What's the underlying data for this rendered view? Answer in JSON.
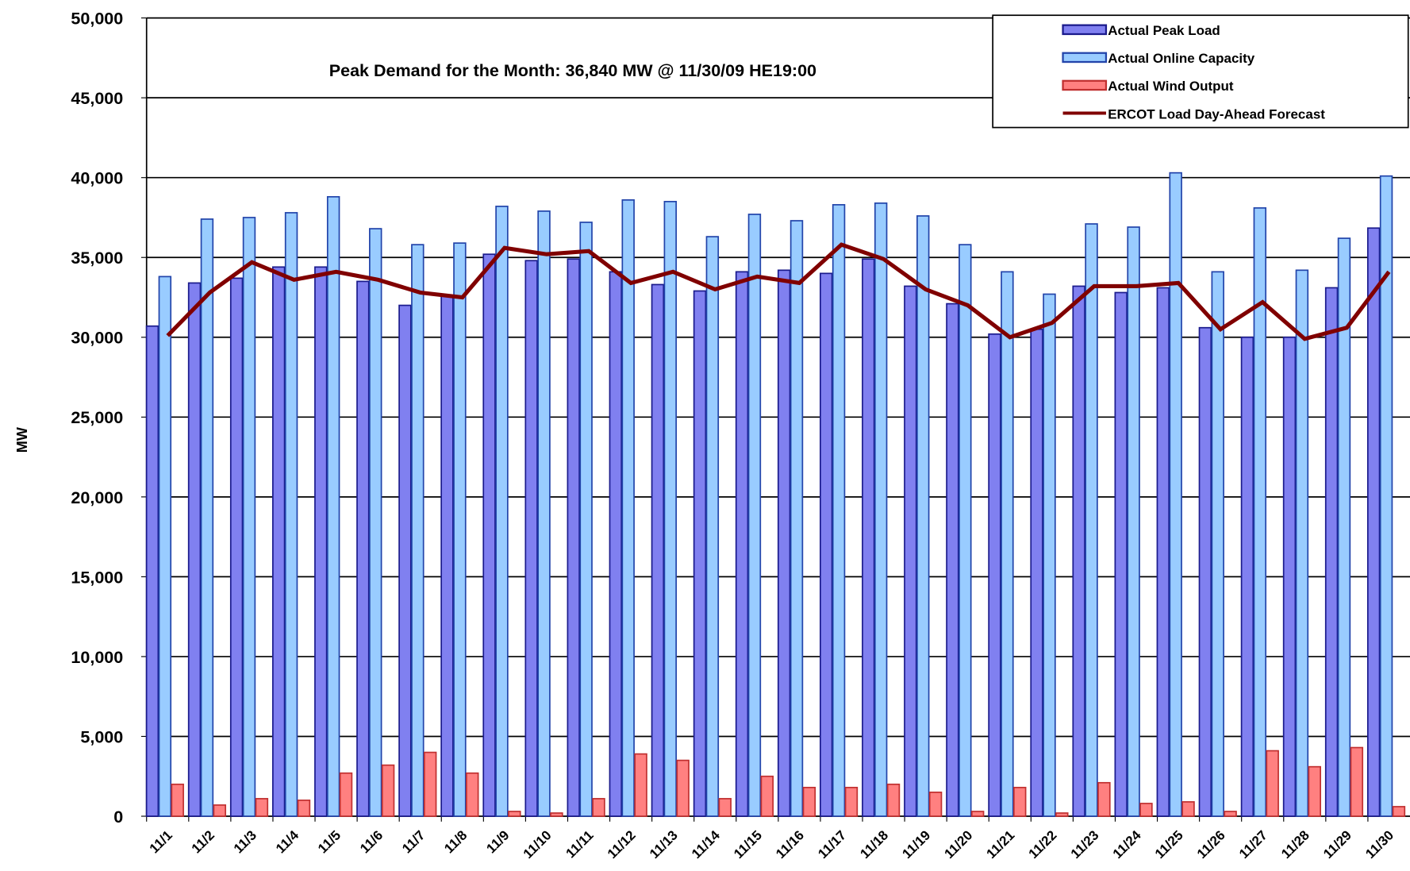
{
  "chart_data": {
    "type": "bar",
    "annotation": "Peak Demand for the Month:  36,840  MW @ 11/30/09 HE19:00",
    "y_label": "MW",
    "categories": [
      "11/1",
      "11/2",
      "11/3",
      "11/4",
      "11/5",
      "11/6",
      "11/7",
      "11/8",
      "11/9",
      "11/10",
      "11/11",
      "11/12",
      "11/13",
      "11/14",
      "11/15",
      "11/16",
      "11/17",
      "11/18",
      "11/19",
      "11/20",
      "11/21",
      "11/22",
      "11/23",
      "11/24",
      "11/25",
      "11/26",
      "11/27",
      "11/28",
      "11/29",
      "11/30"
    ],
    "series": [
      {
        "name": "Actual Peak Load",
        "type": "bar",
        "color": "#8080f0",
        "edge": "#1a1a8c",
        "values": [
          30700,
          33400,
          33700,
          34400,
          34400,
          33500,
          32000,
          32600,
          35200,
          34800,
          34900,
          34100,
          33300,
          32900,
          34100,
          34200,
          34000,
          34900,
          33200,
          32100,
          30200,
          30500,
          33200,
          32800,
          33100,
          30600,
          30000,
          30000,
          33100,
          36840
        ]
      },
      {
        "name": "Actual Online Capacity",
        "type": "bar",
        "color": "#99ccff",
        "edge": "#2244aa",
        "values": [
          33800,
          37400,
          37500,
          37800,
          38800,
          36800,
          35800,
          35900,
          38200,
          37900,
          37200,
          38600,
          38500,
          36300,
          37700,
          37300,
          38300,
          38400,
          37600,
          35800,
          34100,
          32700,
          37100,
          36900,
          40300,
          34100,
          38100,
          34200,
          36200,
          40100
        ]
      },
      {
        "name": "Actual Wind Output",
        "type": "bar",
        "color": "#ff8080",
        "edge": "#c03030",
        "values": [
          2000,
          700,
          1100,
          1000,
          2700,
          3200,
          4000,
          2700,
          300,
          200,
          1100,
          3900,
          3500,
          1100,
          2500,
          1800,
          1800,
          2000,
          1500,
          300,
          1800,
          200,
          2100,
          800,
          900,
          300,
          4100,
          3100,
          4300,
          600
        ]
      },
      {
        "name": "ERCOT Load Day-Ahead Forecast",
        "type": "line",
        "color": "#800000",
        "values": [
          30100,
          32800,
          34700,
          33600,
          34100,
          33600,
          32800,
          32500,
          35600,
          35200,
          35400,
          33400,
          34100,
          33000,
          33800,
          33400,
          35800,
          34900,
          33000,
          32000,
          30000,
          30900,
          33200,
          33200,
          33400,
          30500,
          32200,
          29900,
          30600,
          34100
        ]
      }
    ],
    "ylim": [
      0,
      50000
    ],
    "yticks": [
      0,
      {
        "value": 5000,
        "label": "5,000"
      },
      {
        "value": 10000,
        "label": "10,000"
      },
      {
        "value": 15000,
        "label": "15,000"
      },
      {
        "value": 20000,
        "label": "20,000"
      },
      {
        "value": 25000,
        "label": "25,000"
      },
      {
        "value": 30000,
        "label": "30,000"
      },
      {
        "value": 35000,
        "label": "35,000"
      },
      {
        "value": 40000,
        "label": "40,000"
      },
      {
        "value": 45000,
        "label": "45,000"
      },
      {
        "value": 50000,
        "label": "50,000"
      }
    ],
    "grid": true,
    "legend": "top-right"
  }
}
